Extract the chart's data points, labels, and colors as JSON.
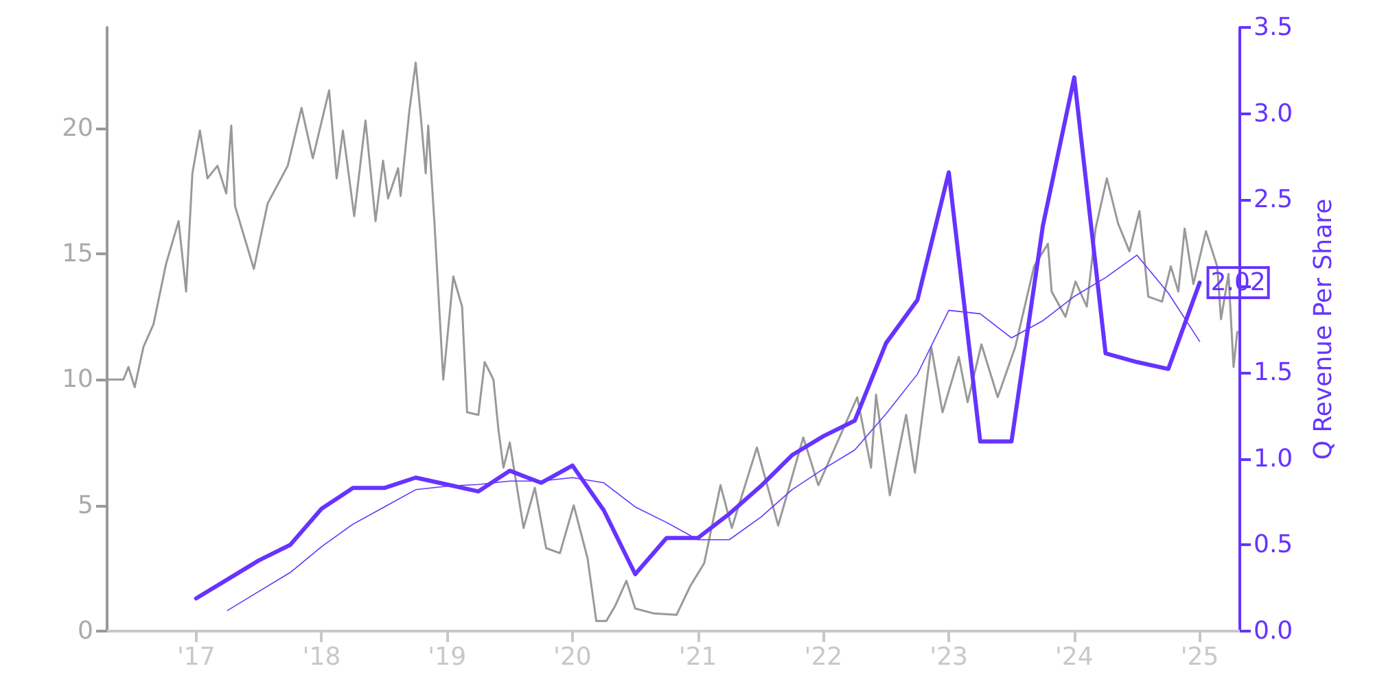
{
  "chart_data": {
    "type": "line",
    "y2label": "Q Revenue Per Share",
    "xlim": [
      2016.29,
      2025.32
    ],
    "xticks": [
      {
        "value": 2017,
        "label": "'17"
      },
      {
        "value": 2018,
        "label": "'18"
      },
      {
        "value": 2019,
        "label": "'19"
      },
      {
        "value": 2020,
        "label": "'20"
      },
      {
        "value": 2021,
        "label": "'21"
      },
      {
        "value": 2022,
        "label": "'22"
      },
      {
        "value": 2023,
        "label": "'23"
      },
      {
        "value": 2024,
        "label": "'24"
      },
      {
        "value": 2025,
        "label": "'25"
      }
    ],
    "ylim": [
      0,
      24
    ],
    "yticks": [
      0,
      5,
      10,
      15,
      20
    ],
    "y2lim": [
      0,
      3.5
    ],
    "y2ticks": [
      {
        "value": 0,
        "label": "0.0"
      },
      0.5,
      {
        "value": 1,
        "label": "1.0"
      },
      1.5,
      {
        "value": 2,
        "label": null
      },
      2.5,
      {
        "value": 3,
        "label": "3.0"
      },
      3.5
    ],
    "grid": false,
    "marker": "none",
    "series": [
      {
        "color": "#999999",
        "x": [
          2016.29,
          2016.42,
          2016.46,
          2016.51,
          2016.58,
          2016.66,
          2016.76,
          2016.86,
          2016.92,
          2016.97,
          2017.03,
          2017.09,
          2017.17,
          2017.24,
          2017.28,
          2017.31,
          2017.46,
          2017.57,
          2017.73,
          2017.84,
          2017.93,
          2018.06,
          2018.12,
          2018.17,
          2018.26,
          2018.35,
          2018.43,
          2018.49,
          2018.53,
          2018.61,
          2018.63,
          2018.7,
          2018.75,
          2018.79,
          2018.83,
          2018.85,
          2018.9,
          2018.97,
          2019.05,
          2019.12,
          2019.16,
          2019.25,
          2019.3,
          2019.37,
          2019.41,
          2019.45,
          2019.5,
          2019.61,
          2019.7,
          2019.79,
          2019.9,
          2020.01,
          2020.12,
          2020.19,
          2020.27,
          2020.34,
          2020.43,
          2020.5,
          2020.65,
          2020.83,
          2020.94,
          2021.05,
          2021.18,
          2021.27,
          2021.47,
          2021.64,
          2021.84,
          2021.96,
          2022.27,
          2022.38,
          2022.42,
          2022.53,
          2022.66,
          2022.73,
          2022.86,
          2022.95,
          2023.08,
          2023.15,
          2023.26,
          2023.39,
          2023.53,
          2023.68,
          2023.79,
          2023.82,
          2023.93,
          2024.01,
          2024.1,
          2024.17,
          2024.26,
          2024.35,
          2024.44,
          2024.52,
          2024.59,
          2024.7,
          2024.77,
          2024.83,
          2024.88,
          2024.95,
          2025.05,
          2025.14,
          2025.17,
          2025.23,
          2025.27,
          2025.3
        ],
        "values": [
          10.0,
          10.0,
          10.5,
          9.7,
          11.3,
          12.2,
          14.6,
          16.3,
          13.5,
          18.2,
          19.9,
          18.0,
          18.5,
          17.4,
          20.1,
          16.9,
          14.4,
          17.0,
          18.5,
          20.8,
          18.8,
          21.5,
          18.0,
          19.9,
          16.5,
          20.3,
          16.3,
          18.7,
          17.2,
          18.4,
          17.3,
          20.7,
          22.6,
          20.5,
          18.2,
          20.1,
          16.2,
          10.0,
          14.1,
          12.9,
          8.7,
          8.6,
          10.7,
          10.0,
          8.0,
          6.5,
          7.5,
          4.1,
          5.7,
          3.3,
          3.1,
          5.0,
          2.9,
          0.4,
          0.4,
          1.0,
          2.0,
          0.9,
          0.7,
          0.65,
          1.8,
          2.7,
          5.8,
          4.1,
          7.3,
          4.2,
          7.7,
          5.8,
          9.3,
          6.5,
          9.4,
          5.4,
          8.6,
          6.3,
          11.3,
          8.7,
          10.9,
          9.1,
          11.4,
          9.3,
          11.3,
          14.5,
          15.4,
          13.5,
          12.5,
          13.9,
          12.9,
          16.0,
          18.0,
          16.2,
          15.1,
          16.7,
          13.3,
          13.1,
          14.5,
          13.5,
          16.0,
          13.8,
          15.9,
          14.5,
          12.4,
          14.2,
          10.5,
          11.9
        ]
      },
      {
        "color": "#6633ff",
        "axis": "y2",
        "x": [
          2017.0,
          2017.25,
          2017.5,
          2017.75,
          2018.0,
          2018.25,
          2018.5,
          2018.75,
          2019.0,
          2019.25,
          2019.5,
          2019.75,
          2020.0,
          2020.25,
          2020.5,
          2020.75,
          2021.0,
          2021.25,
          2021.5,
          2021.75,
          2022.0,
          2022.25,
          2022.5,
          2022.75,
          2023.0,
          2023.25,
          2023.5,
          2023.75,
          2024.0,
          2024.25,
          2024.5,
          2024.75,
          2025.0
        ],
        "values": [
          0.19,
          0.3,
          0.41,
          0.5,
          0.71,
          0.83,
          0.83,
          0.89,
          0.85,
          0.81,
          0.93,
          0.86,
          0.96,
          0.7,
          0.33,
          0.54,
          0.54,
          0.68,
          0.84,
          1.02,
          1.13,
          1.22,
          1.67,
          1.92,
          2.66,
          1.1,
          1.1,
          2.35,
          3.21,
          1.61,
          1.56,
          1.52,
          2.02
        ],
        "value_labels": [
          null,
          null,
          null,
          null,
          null,
          null,
          null,
          null,
          null,
          null,
          null,
          null,
          null,
          null,
          null,
          null,
          null,
          null,
          null,
          null,
          null,
          null,
          null,
          null,
          null,
          null,
          null,
          null,
          null,
          null,
          null,
          null,
          "2.02"
        ]
      },
      {
        "color": "#6633ff",
        "axis": "y2",
        "x": [
          2017.25,
          2017.5,
          2017.75,
          2018.0,
          2018.25,
          2018.5,
          2018.75,
          2019.0,
          2019.25,
          2019.5,
          2019.75,
          2020.0,
          2020.25,
          2020.5,
          2020.75,
          2021.0,
          2021.25,
          2021.5,
          2021.75,
          2022.0,
          2022.25,
          2022.5,
          2022.75,
          2023.0,
          2023.25,
          2023.5,
          2023.75,
          2024.0,
          2024.25,
          2024.5,
          2024.75,
          2025.0
        ],
        "values": [
          0.12,
          0.23,
          0.34,
          0.49,
          0.62,
          0.72,
          0.82,
          0.84,
          0.85,
          0.87,
          0.87,
          0.89,
          0.86,
          0.72,
          0.63,
          0.53,
          0.53,
          0.66,
          0.82,
          0.94,
          1.05,
          1.26,
          1.49,
          1.86,
          1.84,
          1.7,
          1.8,
          1.94,
          2.05,
          2.18,
          1.96,
          1.68
        ]
      }
    ]
  }
}
